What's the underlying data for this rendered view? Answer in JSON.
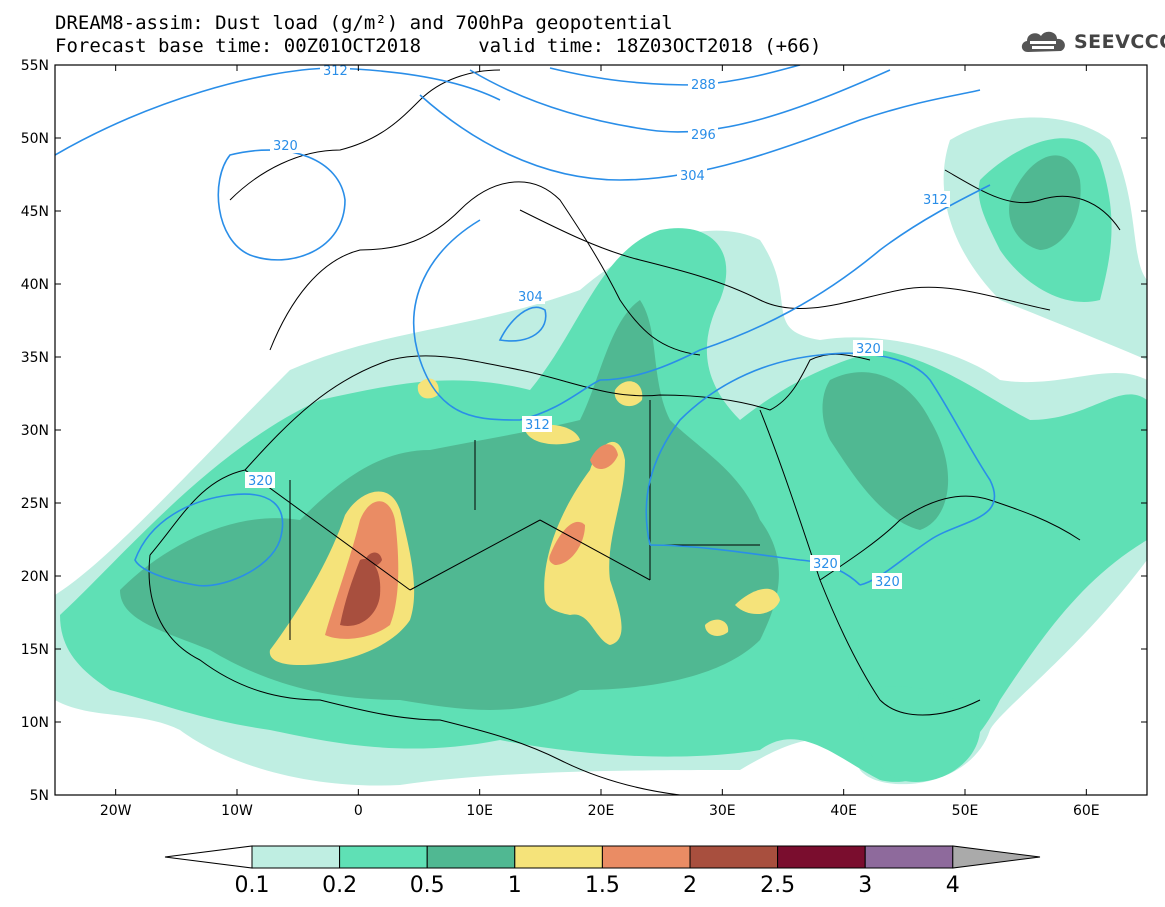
{
  "title": {
    "line1": "DREAM8-assim: Dust load (g/m²) and 700hPa geopotential",
    "line2": "Forecast base time: 00Z01OCT2018     valid time: 18Z03OCT2018 (+66)"
  },
  "logo": {
    "text": "SEEVCCC",
    "icon": "cloud-icon"
  },
  "map": {
    "lon_range": [
      -25,
      65
    ],
    "lat_range": [
      5,
      55
    ],
    "lat_ticks": [
      "55N",
      "50N",
      "45N",
      "40N",
      "35N",
      "30N",
      "25N",
      "20N",
      "15N",
      "10N",
      "5N"
    ],
    "lon_ticks": [
      "20W",
      "10W",
      "0",
      "10E",
      "20E",
      "30E",
      "40E",
      "50E",
      "60E"
    ],
    "contour_labels": [
      "312",
      "288",
      "296",
      "304",
      "312",
      "320",
      "304",
      "312",
      "320",
      "320",
      "320",
      "320"
    ]
  },
  "colorbar": {
    "labels": [
      "0.1",
      "0.2",
      "0.5",
      "1",
      "1.5",
      "2",
      "2.5",
      "3",
      "4"
    ],
    "colors": [
      "#ffffff",
      "#bfeee2",
      "#5fe0b5",
      "#50b892",
      "#f5e37a",
      "#ea8c64",
      "#a84f3e",
      "#7a0d2e",
      "#8e6a9c",
      "#aaaaaa"
    ]
  }
}
